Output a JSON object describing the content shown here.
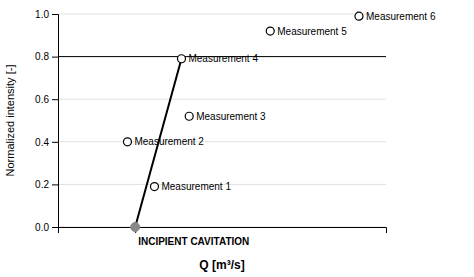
{
  "chart_data": {
    "type": "scatter",
    "xlabel": "Q [m³/s]",
    "ylabel": "Normalized intensity [-]",
    "xlim": [
      0.1,
      0.95
    ],
    "xticks": [
      0.3
    ],
    "ylim": [
      0,
      1.0
    ],
    "yticks": [
      {
        "value": 0,
        "label": "0.0"
      },
      0.2,
      0.4,
      0.6,
      0.8,
      {
        "value": 1.0,
        "label": "1.0"
      }
    ],
    "tick_labels": "y",
    "grid": true,
    "x": [
      0.35,
      0.28,
      0.42,
      0.44,
      0.65,
      0.88
    ],
    "values": [
      0.19,
      0.4,
      0.79,
      0.52,
      0.92,
      0.99
    ],
    "annotations": [
      "Measurement 1",
      "Measurement 2",
      "Measurement 4",
      "Measurement 3",
      "Measurement 5",
      "Measurement 6"
    ],
    "highlight": {
      "x": 0.3,
      "value": 0.0,
      "label": "INCIPIENT CAVITATION",
      "color": "#888888"
    },
    "trend_line": {
      "x": [
        0.3,
        0.42
      ],
      "values": [
        0.0,
        0.79
      ],
      "color": "#000000"
    },
    "reference_line": {
      "value": 0.8,
      "color": "#000000"
    }
  }
}
